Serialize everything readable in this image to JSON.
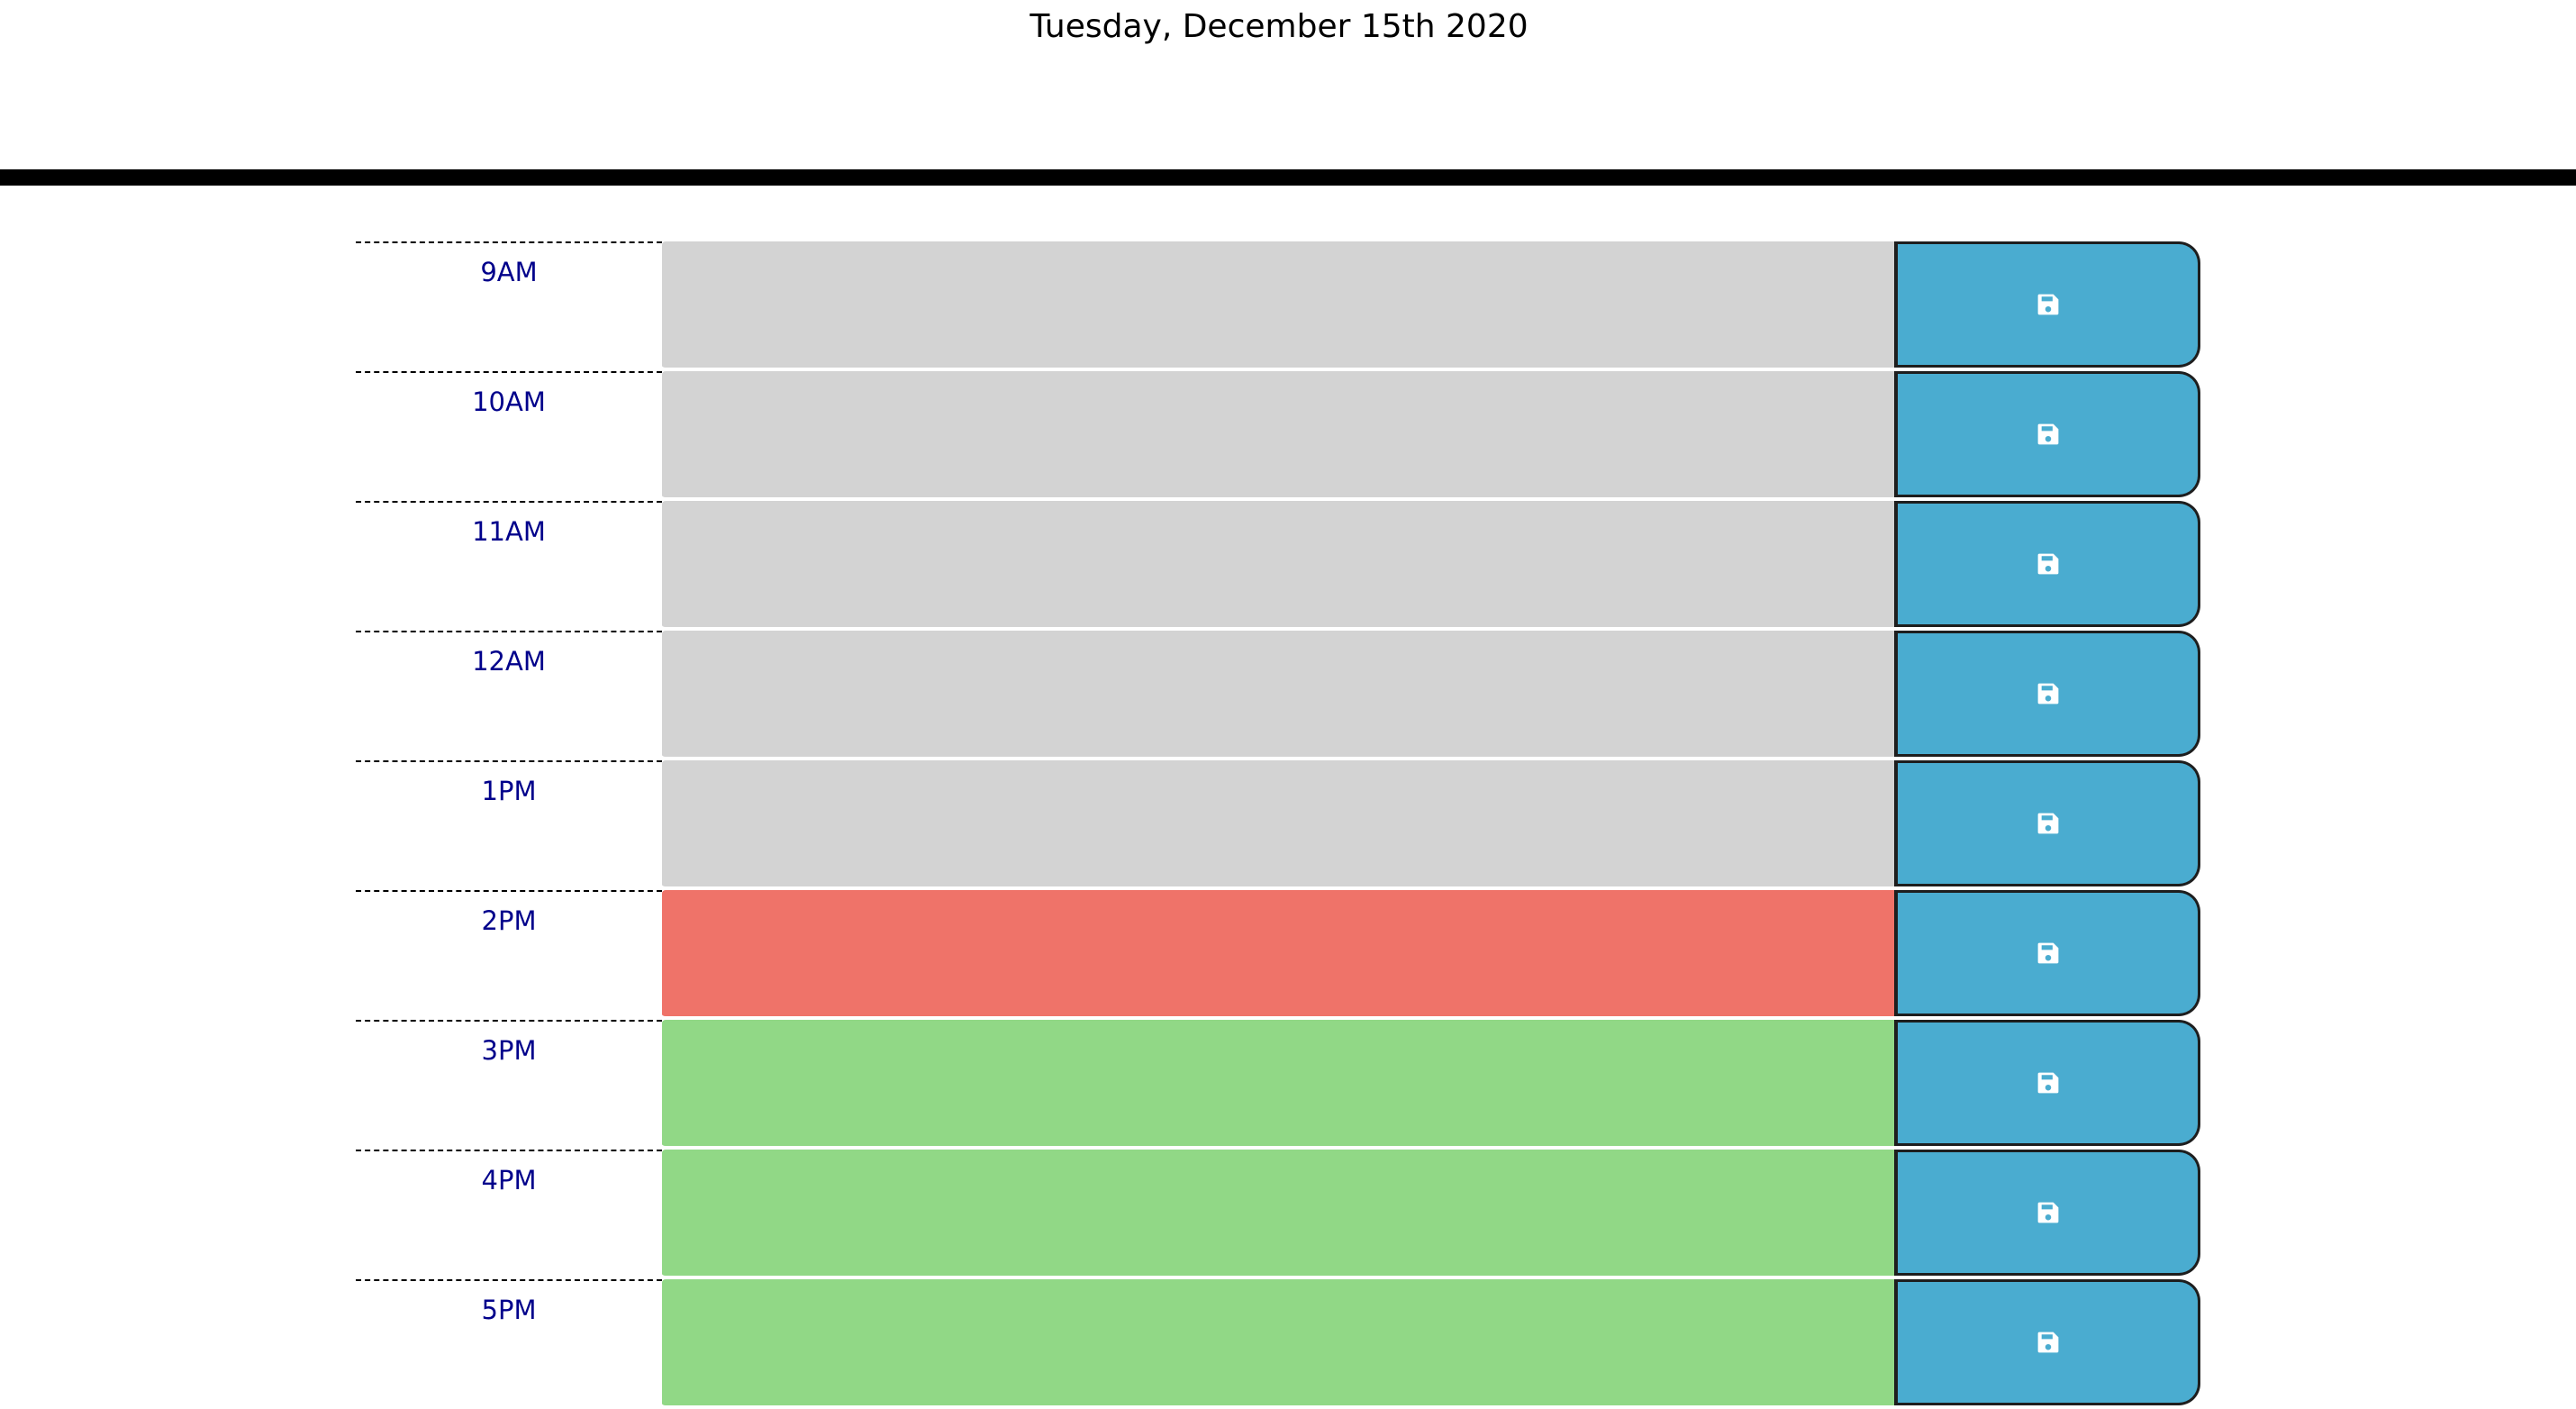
{
  "header": {
    "date": "Tuesday, December 15th 2020"
  },
  "colors": {
    "past": "#d3d3d3",
    "present": "#ef7369",
    "future": "#91d886",
    "save_button": "#4aacd0",
    "hour_label": "#00008b"
  },
  "rows": [
    {
      "hour": "9AM",
      "state": "past",
      "text": "",
      "icon": "save-icon"
    },
    {
      "hour": "10AM",
      "state": "past",
      "text": "",
      "icon": "save-icon"
    },
    {
      "hour": "11AM",
      "state": "past",
      "text": "",
      "icon": "save-icon"
    },
    {
      "hour": "12AM",
      "state": "past",
      "text": "",
      "icon": "save-icon"
    },
    {
      "hour": "1PM",
      "state": "past",
      "text": "",
      "icon": "save-icon"
    },
    {
      "hour": "2PM",
      "state": "present",
      "text": "",
      "icon": "save-icon"
    },
    {
      "hour": "3PM",
      "state": "future",
      "text": "",
      "icon": "save-icon"
    },
    {
      "hour": "4PM",
      "state": "future",
      "text": "",
      "icon": "save-icon"
    },
    {
      "hour": "5PM",
      "state": "future",
      "text": "",
      "icon": "save-icon"
    }
  ]
}
